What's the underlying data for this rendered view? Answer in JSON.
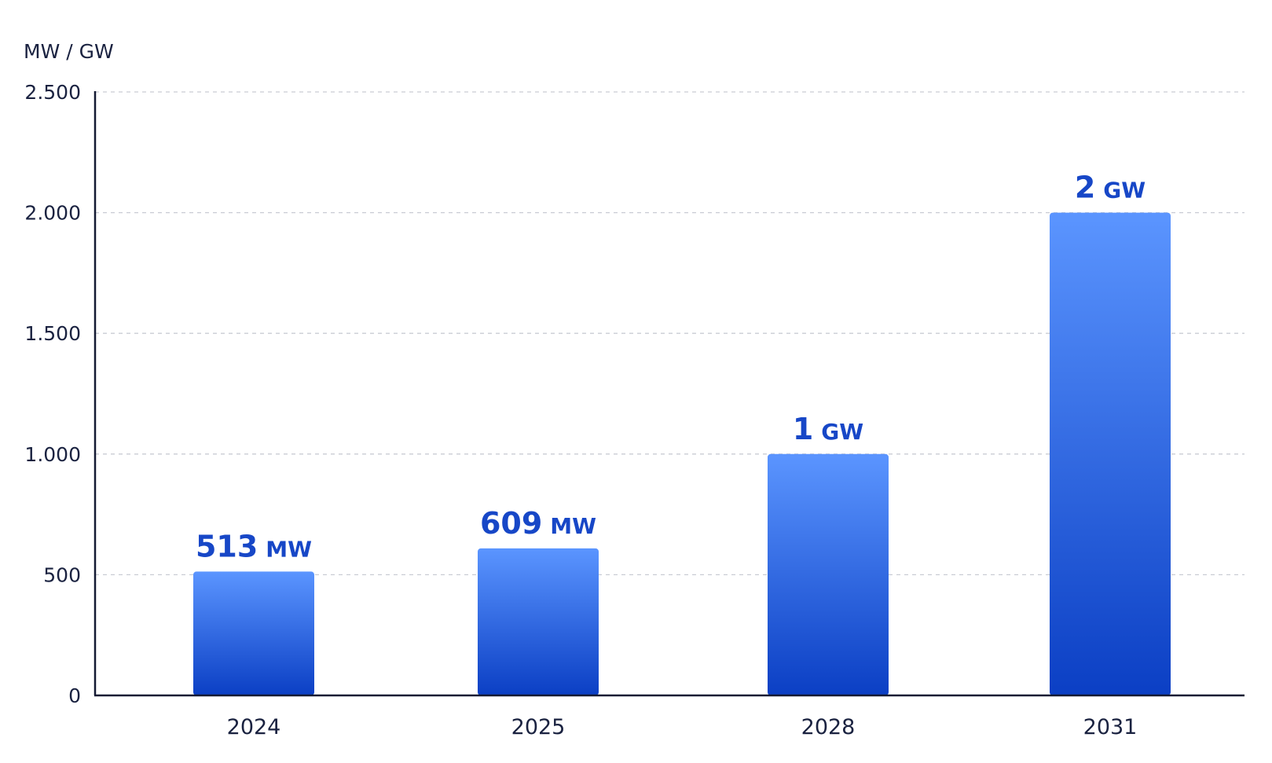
{
  "chart_data": {
    "type": "bar",
    "ylabel": "MW / GW",
    "ylim": [
      0,
      2500
    ],
    "yticks": [
      {
        "value": 0,
        "label": "0"
      },
      {
        "value": 500,
        "label": "500"
      },
      {
        "value": 1000,
        "label": "1.000"
      },
      {
        "value": 1500,
        "label": "1.500"
      },
      {
        "value": 2000,
        "label": "2.000"
      },
      {
        "value": 2500,
        "label": "2.500"
      }
    ],
    "grid": true,
    "categories": [
      "2024",
      "2025",
      "2028",
      "2031"
    ],
    "values": [
      513,
      609,
      1000,
      2000
    ],
    "data_labels": [
      {
        "number": "513",
        "unit": "MW"
      },
      {
        "number": "609",
        "unit": "MW"
      },
      {
        "number": "1",
        "unit": "GW"
      },
      {
        "number": "2",
        "unit": "GW"
      }
    ],
    "colors": {
      "bar_top": "#5b95ff",
      "bar_bottom": "#0b3fc4",
      "label": "#1747c7",
      "axis": "#141a33",
      "grid": "#c9ccd4"
    }
  }
}
